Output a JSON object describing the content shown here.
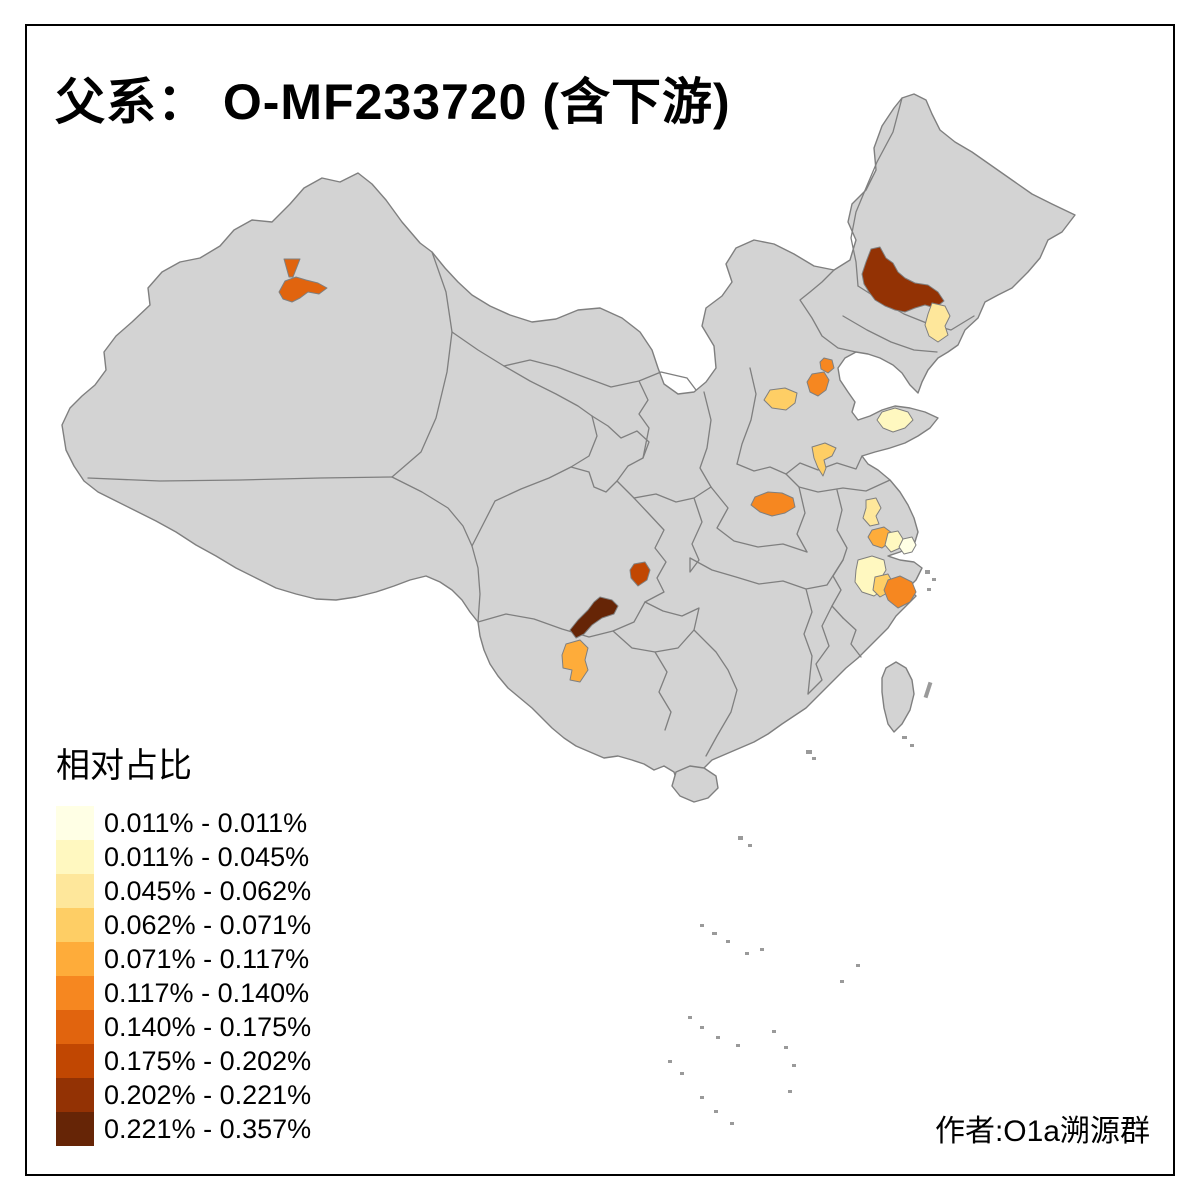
{
  "title": "父系： O-MF233720 (含下游)",
  "attribution": "作者:O1a溯源群",
  "legend": {
    "title": "相对占比",
    "classes": [
      {
        "label": "0.011% - 0.011%",
        "color": "#FFFFE5"
      },
      {
        "label": "0.011% - 0.045%",
        "color": "#FFF8C0"
      },
      {
        "label": "0.045% - 0.062%",
        "color": "#FEE79B"
      },
      {
        "label": "0.062% - 0.071%",
        "color": "#FECE65"
      },
      {
        "label": "0.071% - 0.117%",
        "color": "#FEAC3A"
      },
      {
        "label": "0.117% - 0.140%",
        "color": "#F68720"
      },
      {
        "label": "0.140% - 0.175%",
        "color": "#E1640E"
      },
      {
        "label": "0.175% - 0.202%",
        "color": "#C14702"
      },
      {
        "label": "0.202% - 0.221%",
        "color": "#933204"
      },
      {
        "label": "0.221% - 0.357%",
        "color": "#662506"
      }
    ]
  },
  "map": {
    "land_color": "#d3d3d3",
    "border_color": "#7f7f7f",
    "sea_color": "#ffffff",
    "regions": [
      {
        "id": "urumqi-triangle",
        "class": 6
      },
      {
        "id": "urumqi",
        "class": 6
      },
      {
        "id": "qiqihar",
        "class": 8
      },
      {
        "id": "daqing",
        "class": 2
      },
      {
        "id": "beijing",
        "class": 5
      },
      {
        "id": "langfang",
        "class": 5
      },
      {
        "id": "taiyuan",
        "class": 3
      },
      {
        "id": "yantai",
        "class": 1
      },
      {
        "id": "jinan",
        "class": 3
      },
      {
        "id": "zhengzhou",
        "class": 5
      },
      {
        "id": "north-jiangsu",
        "class": 2
      },
      {
        "id": "changzhou",
        "class": 4
      },
      {
        "id": "suzhou",
        "class": 1
      },
      {
        "id": "shanghai",
        "class": 0
      },
      {
        "id": "hangzhou",
        "class": 1
      },
      {
        "id": "shaoxing",
        "class": 3
      },
      {
        "id": "ningbo",
        "class": 5
      },
      {
        "id": "chongqing-west",
        "class": 7
      },
      {
        "id": "liangshan",
        "class": 9
      },
      {
        "id": "kunming",
        "class": 4
      }
    ]
  }
}
